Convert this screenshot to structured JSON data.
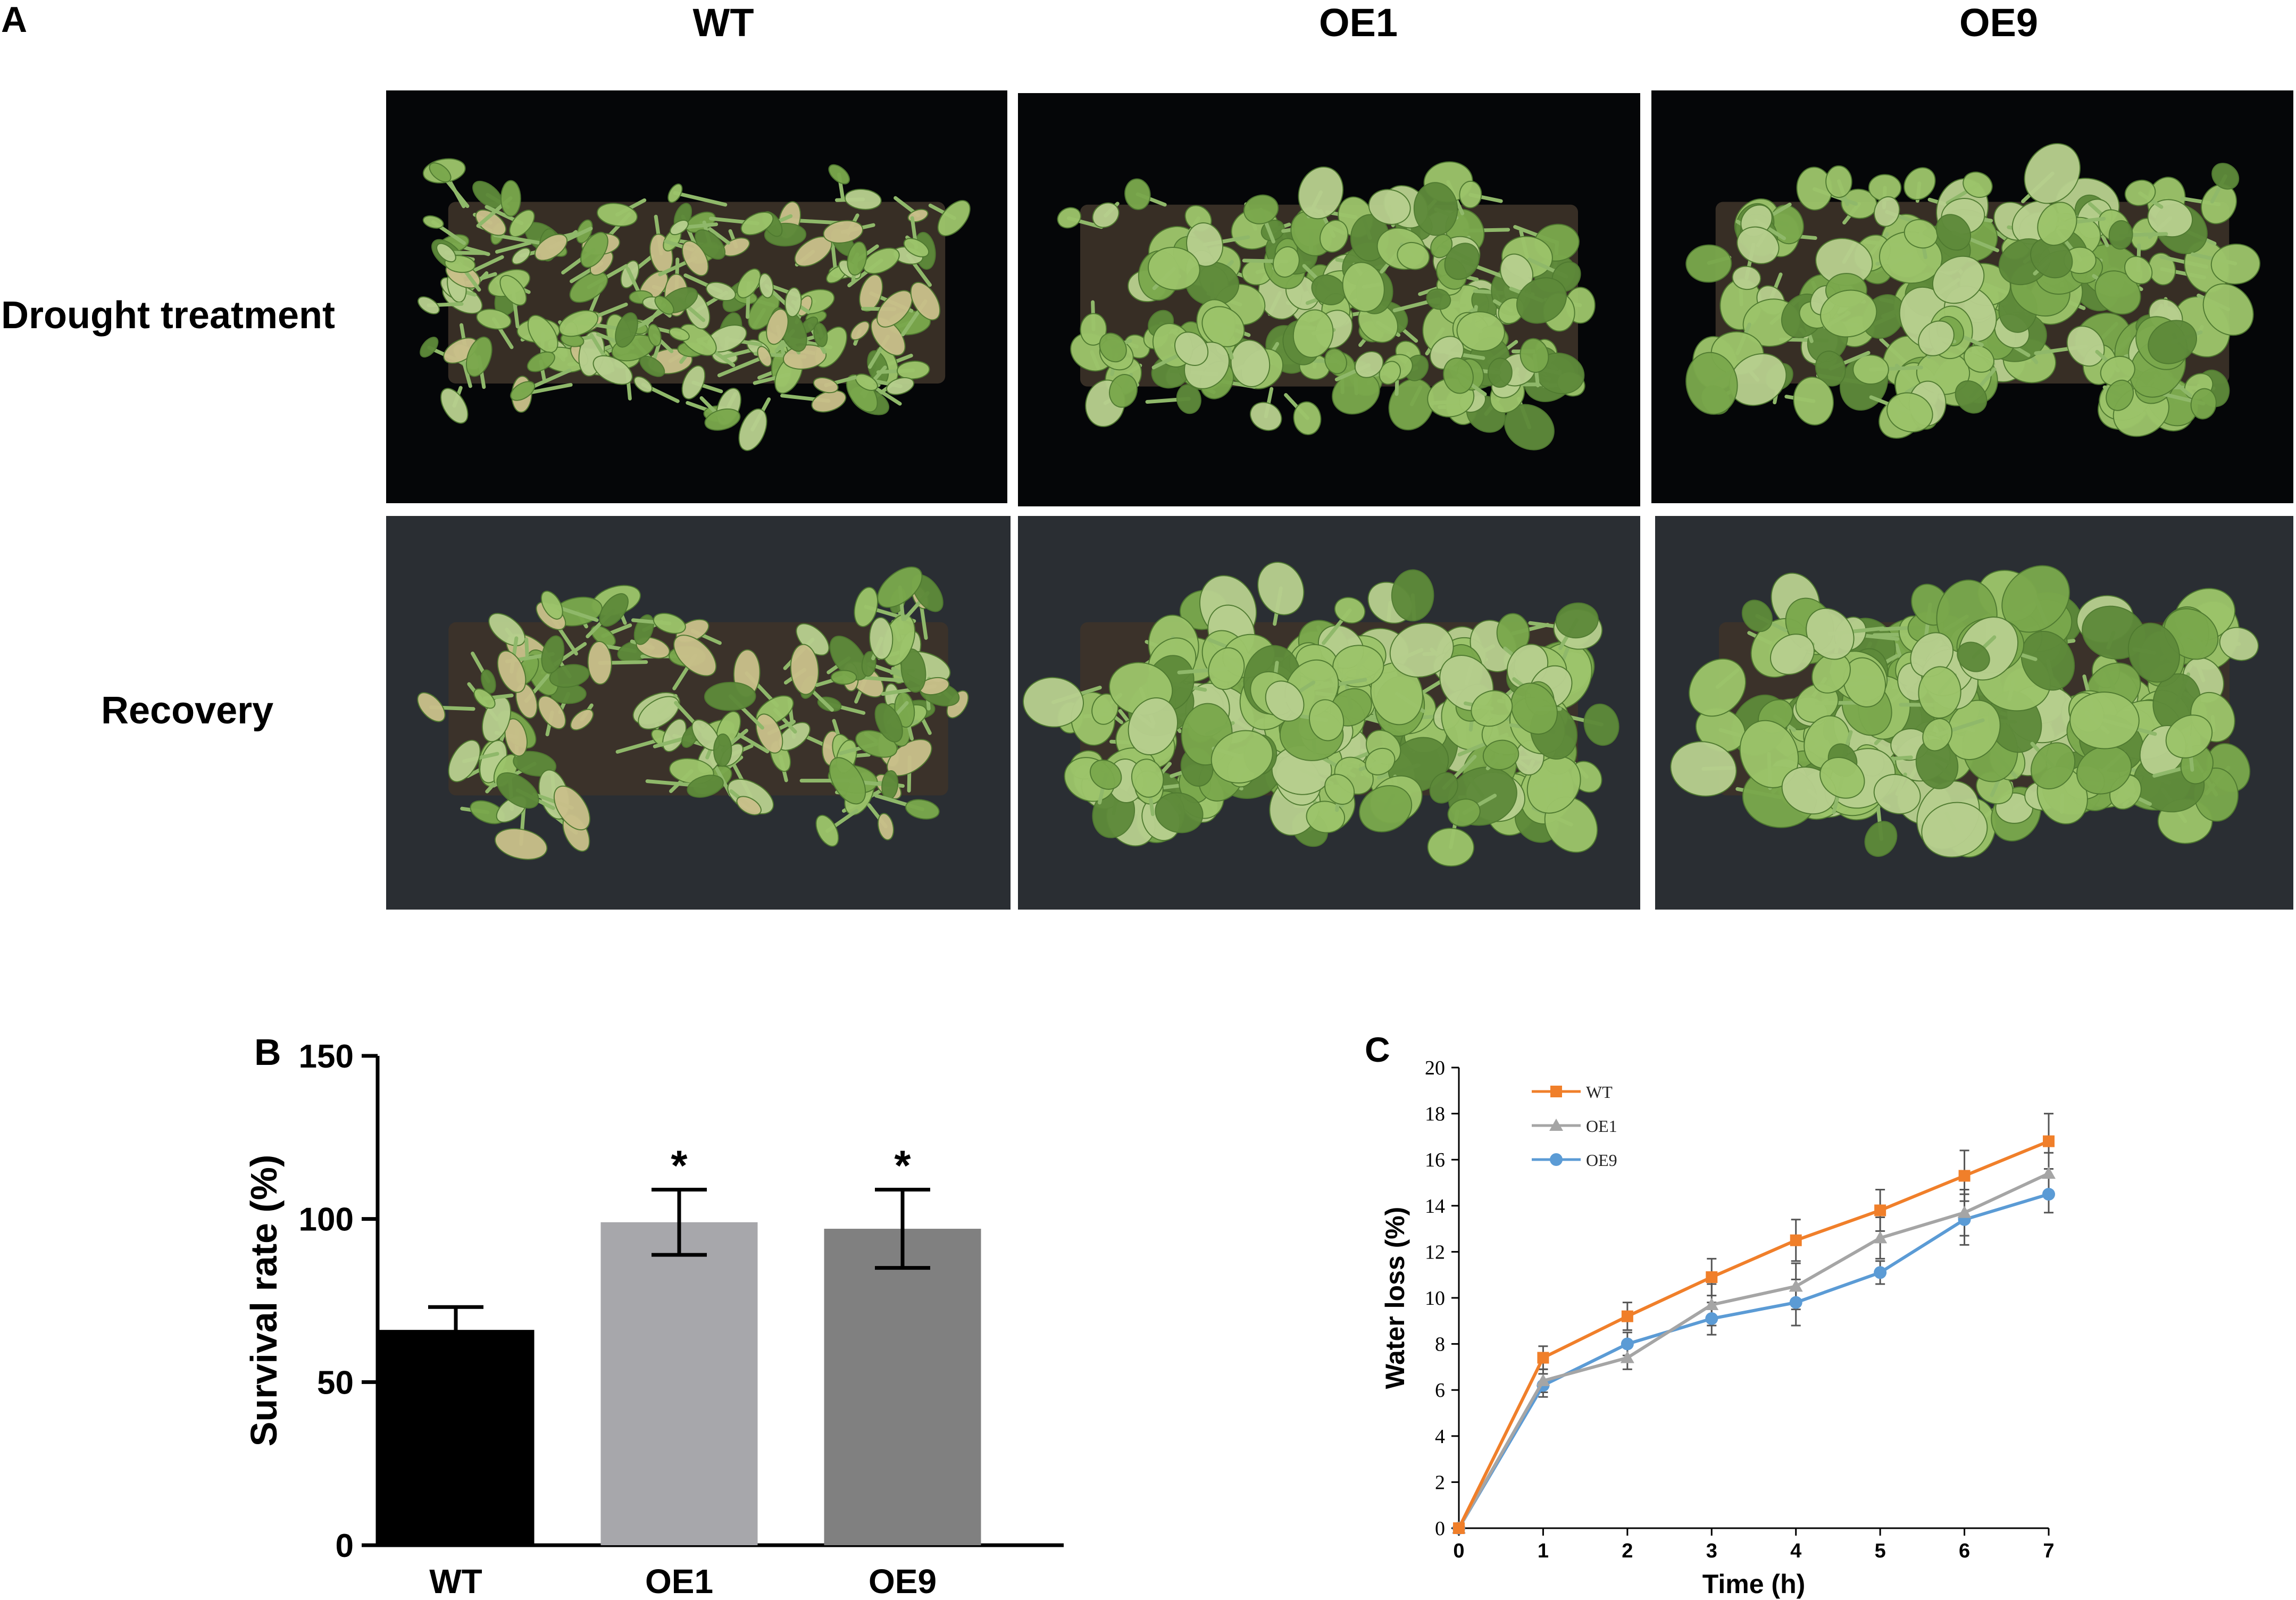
{
  "panel_a": {
    "letter": "A",
    "columns": [
      "WT",
      "OE1",
      "OE9"
    ],
    "rows": [
      "Drought treatment",
      "Recovery"
    ],
    "photo_colors": {
      "drought_bg": "#050608",
      "recovery_bg": "#2a2e33",
      "leaf_light": "#9cc46a",
      "leaf_mid": "#7aa84c",
      "leaf_dark": "#5e8a3a",
      "leaf_pale": "#b7cf8e",
      "soil": "#3d3329",
      "yellowed": "#c9c08a"
    }
  },
  "chart_data": [
    {
      "panel": "B",
      "type": "bar",
      "categories": [
        "WT",
        "OE1",
        "OE9"
      ],
      "values": [
        66,
        99,
        97
      ],
      "errors": [
        7,
        10,
        12
      ],
      "significance": [
        "",
        "*",
        "*"
      ],
      "colors": [
        "#000000",
        "#a7a7ab",
        "#808080"
      ],
      "ylabel": "Survival rate (%)",
      "ylim": [
        0,
        150
      ],
      "yticks": [
        0,
        50,
        100,
        150
      ]
    },
    {
      "panel": "C",
      "type": "line",
      "x": [
        0,
        1,
        2,
        3,
        4,
        5,
        6,
        7
      ],
      "xlabel": "Time (h)",
      "ylabel": "Water loss (%)",
      "ylim": [
        0,
        20
      ],
      "yticks": [
        0,
        2,
        4,
        6,
        8,
        10,
        12,
        14,
        16,
        18,
        20
      ],
      "legend": "top-left",
      "series": [
        {
          "name": "WT",
          "color": "#f07f2a",
          "marker": "square",
          "values": [
            0,
            7.4,
            9.2,
            10.9,
            12.5,
            13.8,
            15.3,
            16.8
          ],
          "errors": [
            0,
            0.5,
            0.6,
            0.8,
            0.9,
            0.9,
            1.1,
            1.2
          ]
        },
        {
          "name": "OE1",
          "color": "#a5a5a5",
          "marker": "triangle",
          "values": [
            0,
            6.4,
            7.4,
            9.7,
            10.5,
            12.6,
            13.7,
            15.4
          ],
          "errors": [
            0,
            0.5,
            0.5,
            0.9,
            1.0,
            0.9,
            1.0,
            0.9
          ]
        },
        {
          "name": "OE9",
          "color": "#5b9bd5",
          "marker": "circle",
          "values": [
            0,
            6.2,
            8.0,
            9.1,
            9.8,
            11.1,
            13.4,
            14.5
          ],
          "errors": [
            0,
            0.5,
            0.5,
            0.7,
            1.0,
            0.5,
            1.1,
            0.8
          ]
        }
      ]
    }
  ]
}
